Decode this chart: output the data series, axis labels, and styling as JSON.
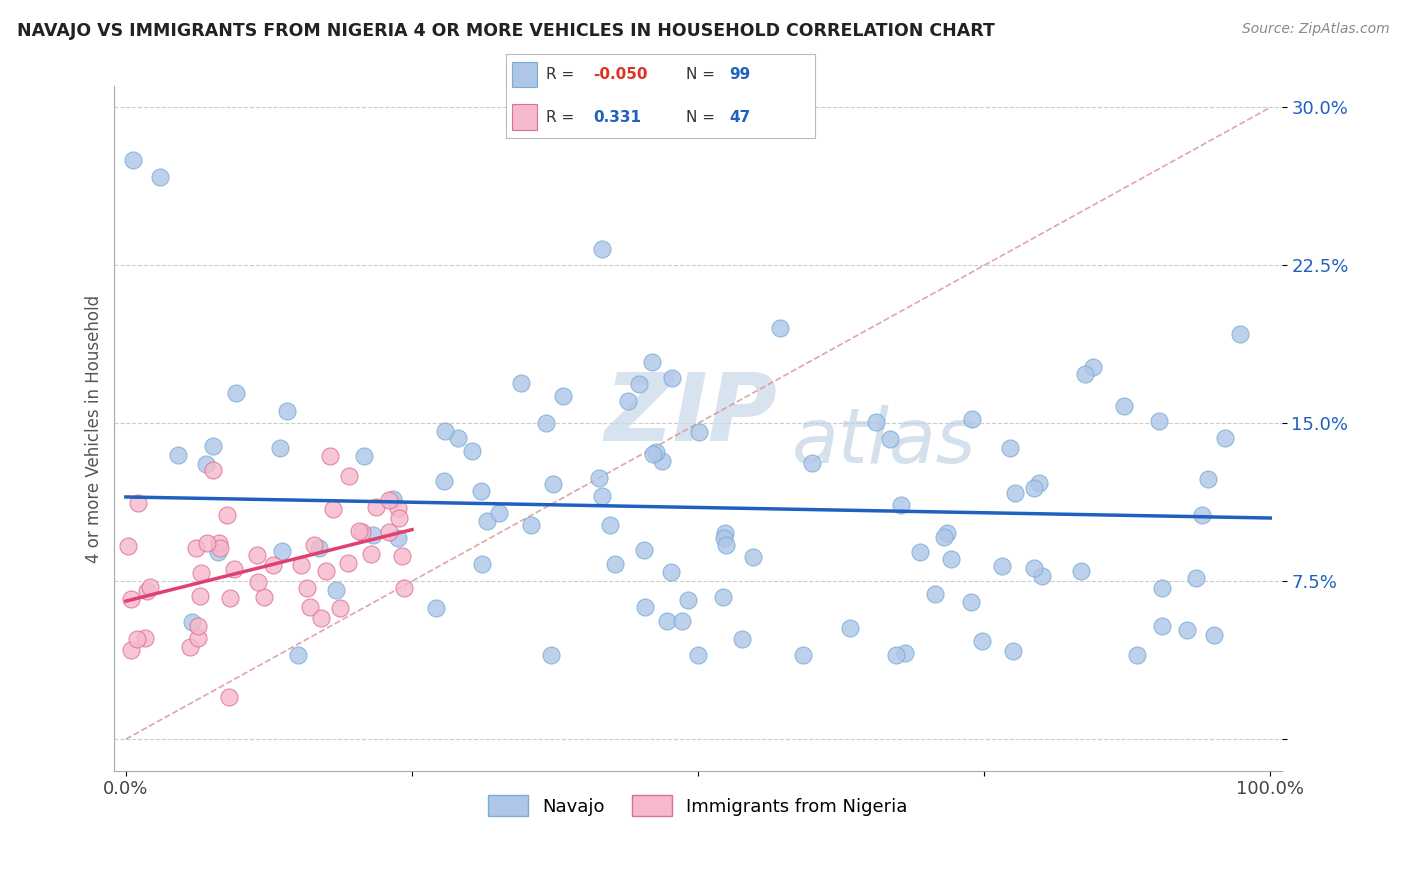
{
  "title": "NAVAJO VS IMMIGRANTS FROM NIGERIA 4 OR MORE VEHICLES IN HOUSEHOLD CORRELATION CHART",
  "source": "Source: ZipAtlas.com",
  "ylabel": "4 or more Vehicles in Household",
  "navajo_R": -0.05,
  "navajo_N": 99,
  "nigeria_R": 0.331,
  "nigeria_N": 47,
  "navajo_color": "#aec6e8",
  "navajo_edge_color": "#7aadd4",
  "navajo_line_color": "#2060c0",
  "nigeria_color": "#f5b8cc",
  "nigeria_edge_color": "#e07090",
  "nigeria_line_color": "#e04070",
  "diag_line_color": "#e08090",
  "background_color": "#ffffff",
  "legend_box_color": "#e8f0f8",
  "legend_border_color": "#b0c8e0",
  "R_neg_color": "#e03020",
  "R_pos_color": "#2060c0",
  "N_color": "#2060c0",
  "ytick_color": "#2060c0",
  "title_color": "#222222",
  "ylabel_color": "#555555",
  "watermark_color": "#d0dde8"
}
